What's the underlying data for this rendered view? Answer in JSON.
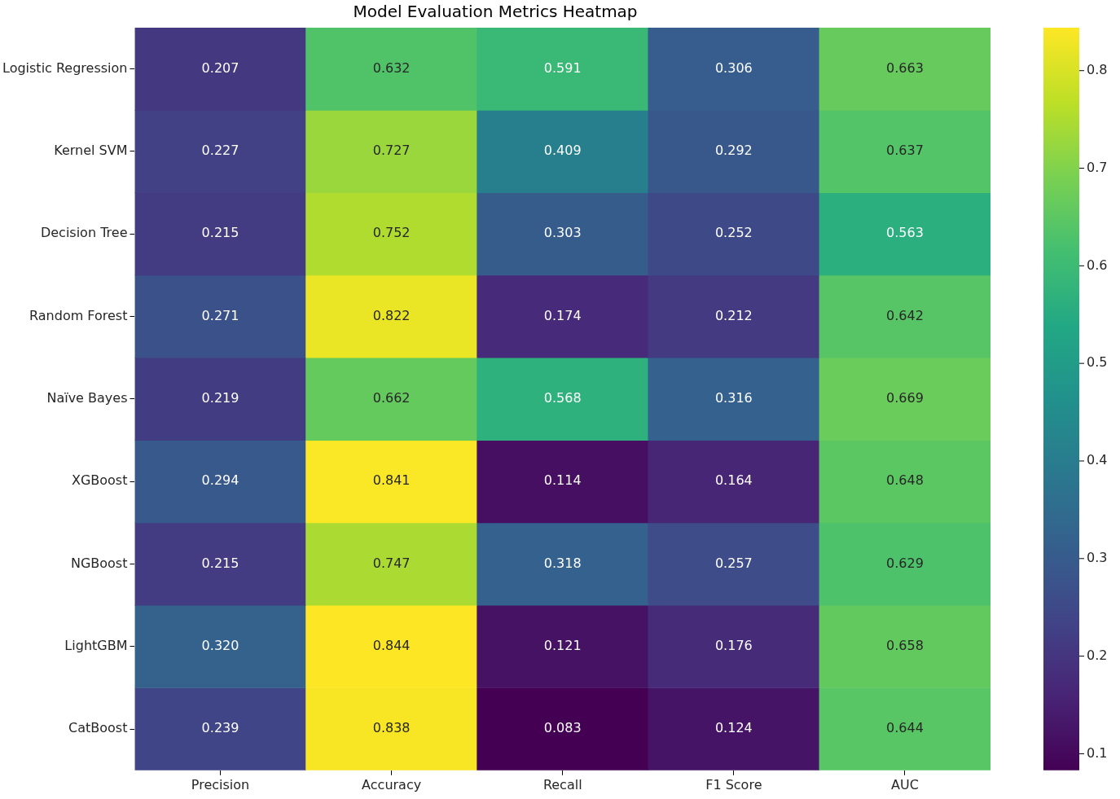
{
  "chart_data": {
    "type": "heatmap",
    "title": "Model Evaluation Metrics Heatmap",
    "categories": [
      "Precision",
      "Accuracy",
      "Recall",
      "F1 Score",
      "AUC"
    ],
    "y_categories": [
      "Logistic Regression",
      "Kernel SVM",
      "Decision Tree",
      "Random Forest",
      "Naïve Bayes",
      "XGBoost",
      "NGBoost",
      "LightGBM",
      "CatBoost"
    ],
    "cells": [
      [
        0.207,
        0.632,
        0.591,
        0.306,
        0.663
      ],
      [
        0.227,
        0.727,
        0.409,
        0.292,
        0.637
      ],
      [
        0.215,
        0.752,
        0.303,
        0.252,
        0.563
      ],
      [
        0.271,
        0.822,
        0.174,
        0.212,
        0.642
      ],
      [
        0.219,
        0.662,
        0.568,
        0.316,
        0.669
      ],
      [
        0.294,
        0.841,
        0.114,
        0.164,
        0.648
      ],
      [
        0.215,
        0.747,
        0.318,
        0.257,
        0.629
      ],
      [
        0.32,
        0.844,
        0.121,
        0.176,
        0.658
      ],
      [
        0.239,
        0.838,
        0.083,
        0.124,
        0.644
      ]
    ],
    "cell_labels": [
      [
        "0.207",
        "0.632",
        "0.591",
        "0.306",
        "0.663"
      ],
      [
        "0.227",
        "0.727",
        "0.409",
        "0.292",
        "0.637"
      ],
      [
        "0.215",
        "0.752",
        "0.303",
        "0.252",
        "0.563"
      ],
      [
        "0.271",
        "0.822",
        "0.174",
        "0.212",
        "0.642"
      ],
      [
        "0.219",
        "0.662",
        "0.568",
        "0.316",
        "0.669"
      ],
      [
        "0.294",
        "0.841",
        "0.114",
        "0.164",
        "0.648"
      ],
      [
        "0.215",
        "0.747",
        "0.318",
        "0.257",
        "0.629"
      ],
      [
        "0.320",
        "0.844",
        "0.121",
        "0.176",
        "0.658"
      ],
      [
        "0.239",
        "0.838",
        "0.083",
        "0.124",
        "0.644"
      ]
    ],
    "clim": [
      0.083,
      0.844
    ],
    "cticks": [
      0.1,
      0.2,
      0.3,
      0.4,
      0.5,
      0.6,
      0.7,
      0.8
    ]
  }
}
